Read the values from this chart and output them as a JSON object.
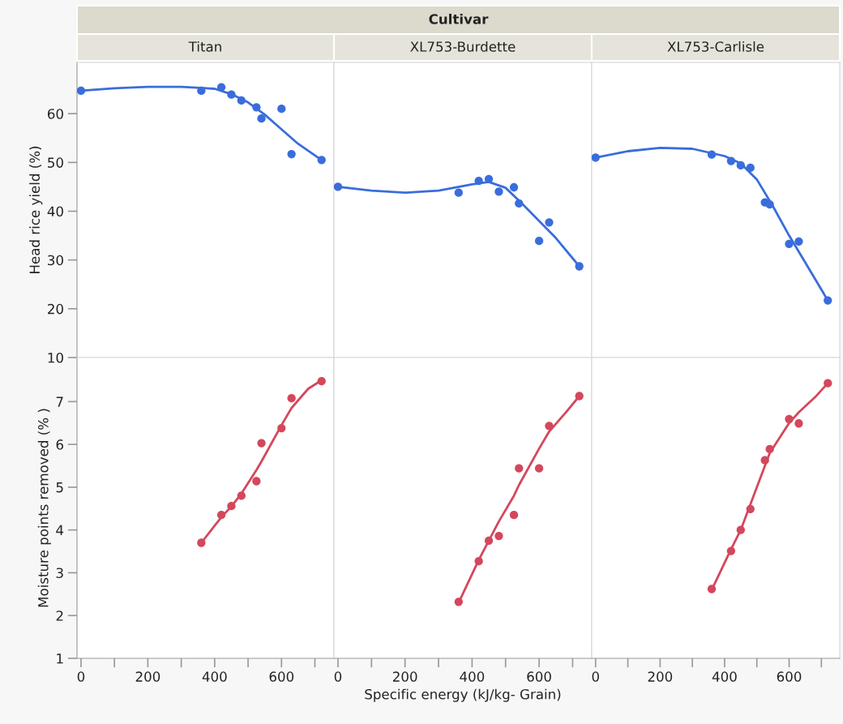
{
  "chart_data": [
    {
      "type": "scatter",
      "title": "Titan",
      "annotations": [
        "Cultivar"
      ],
      "ylabel": "Head rice yield (%)",
      "xlim": [
        -12,
        757
      ],
      "ylim": [
        10,
        70.5
      ],
      "yticks": [
        10,
        20,
        30,
        40,
        50,
        60
      ],
      "tick_labels": "y",
      "marker": "circle",
      "grid": false,
      "series": [
        {
          "color": "#3a6ddc",
          "x": [
            0,
            360,
            420,
            450,
            480,
            525,
            540,
            600,
            630,
            720
          ],
          "values": [
            64.7,
            64.7,
            65.4,
            63.9,
            62.7,
            61.3,
            59.0,
            61.0,
            51.7,
            50.5
          ]
        },
        {
          "type": "line",
          "marker": "none",
          "color": "#3a6ddc",
          "x": [
            0,
            100,
            200,
            300,
            400,
            450,
            500,
            550,
            600,
            650,
            720
          ],
          "values": [
            64.7,
            65.2,
            65.5,
            65.5,
            65.1,
            64.0,
            62.3,
            59.8,
            56.8,
            53.8,
            50.5
          ]
        }
      ]
    },
    {
      "type": "scatter",
      "title": "XL753-Burdette",
      "xlim": [
        -12,
        757
      ],
      "ylim": [
        10,
        70.5
      ],
      "tick_labels": false,
      "marker": "circle",
      "grid": false,
      "series": [
        {
          "color": "#3a6ddc",
          "x": [
            0,
            360,
            420,
            450,
            480,
            525,
            540,
            600,
            630,
            720
          ],
          "values": [
            45.0,
            43.8,
            46.2,
            46.6,
            44.0,
            44.9,
            41.6,
            33.9,
            37.7,
            28.7
          ]
        },
        {
          "type": "line",
          "marker": "none",
          "color": "#3a6ddc",
          "x": [
            0,
            100,
            200,
            300,
            400,
            450,
            500,
            550,
            600,
            650,
            720
          ],
          "values": [
            45.0,
            44.2,
            43.8,
            44.2,
            45.5,
            46.0,
            44.8,
            41.5,
            38.0,
            34.5,
            28.7
          ]
        }
      ]
    },
    {
      "type": "scatter",
      "title": "XL753-Carlisle",
      "xlim": [
        -12,
        757
      ],
      "ylim": [
        10,
        70.5
      ],
      "tick_labels": false,
      "marker": "circle",
      "grid": false,
      "series": [
        {
          "color": "#3a6ddc",
          "x": [
            0,
            360,
            420,
            450,
            480,
            525,
            540,
            600,
            630,
            720
          ],
          "values": [
            51.0,
            51.6,
            50.3,
            49.4,
            48.9,
            41.8,
            41.4,
            33.3,
            33.8,
            21.7
          ]
        },
        {
          "type": "line",
          "marker": "none",
          "color": "#3a6ddc",
          "x": [
            0,
            100,
            200,
            300,
            400,
            450,
            500,
            550,
            600,
            650,
            720
          ],
          "values": [
            51.0,
            52.3,
            53.0,
            52.8,
            51.3,
            49.8,
            46.5,
            41.0,
            35.0,
            29.5,
            21.7
          ]
        }
      ]
    },
    {
      "type": "scatter",
      "ylabel": "Moisture points removed (% )",
      "xlim": [
        -12,
        757
      ],
      "ylim": [
        1,
        8.03
      ],
      "xticks": [
        0,
        {
          "value": 100,
          "label": null
        },
        200,
        {
          "value": 300,
          "label": null
        },
        400,
        {
          "value": 500,
          "label": null
        },
        600,
        {
          "value": 700,
          "label": null
        }
      ],
      "yticks": [
        1,
        2,
        3,
        4,
        5,
        6,
        7
      ],
      "marker": "circle",
      "grid": false,
      "series": [
        {
          "color": "#d4475c",
          "x": [
            360,
            420,
            450,
            480,
            525,
            540,
            600,
            630,
            720
          ],
          "values": [
            3.7,
            4.35,
            4.56,
            4.8,
            5.14,
            6.03,
            6.38,
            7.08,
            7.48
          ]
        },
        {
          "type": "line",
          "marker": "none",
          "color": "#d4475c",
          "x": [
            360,
            420,
            450,
            480,
            525,
            540,
            600,
            630,
            680,
            720
          ],
          "values": [
            3.7,
            4.3,
            4.55,
            4.85,
            5.4,
            5.6,
            6.45,
            6.85,
            7.3,
            7.5
          ]
        }
      ]
    },
    {
      "type": "scatter",
      "xlabel": "Specific energy (kJ/kg- Grain)",
      "xlim": [
        -12,
        757
      ],
      "ylim": [
        1,
        8.03
      ],
      "xticks": [
        0,
        {
          "value": 100,
          "label": null
        },
        200,
        {
          "value": 300,
          "label": null
        },
        400,
        {
          "value": 500,
          "label": null
        },
        600,
        {
          "value": 700,
          "label": null
        }
      ],
      "tick_labels": "x",
      "marker": "circle",
      "grid": false,
      "series": [
        {
          "color": "#d4475c",
          "x": [
            360,
            420,
            450,
            480,
            525,
            540,
            600,
            630,
            720
          ],
          "values": [
            2.32,
            3.27,
            3.75,
            3.86,
            4.35,
            5.44,
            5.44,
            6.43,
            7.13
          ]
        },
        {
          "type": "line",
          "marker": "none",
          "color": "#d4475c",
          "x": [
            360,
            420,
            450,
            480,
            525,
            540,
            600,
            630,
            680,
            720
          ],
          "values": [
            2.3,
            3.3,
            3.75,
            4.2,
            4.8,
            5.05,
            5.9,
            6.3,
            6.75,
            7.13
          ]
        }
      ]
    },
    {
      "type": "scatter",
      "xlim": [
        -12,
        757
      ],
      "ylim": [
        1,
        8.03
      ],
      "xticks": [
        0,
        {
          "value": 100,
          "label": null
        },
        200,
        {
          "value": 300,
          "label": null
        },
        400,
        {
          "value": 500,
          "label": null
        },
        600,
        {
          "value": 700,
          "label": null
        }
      ],
      "tick_labels": "x",
      "marker": "circle",
      "grid": false,
      "series": [
        {
          "color": "#d4475c",
          "x": [
            360,
            420,
            450,
            480,
            525,
            540,
            600,
            630,
            720
          ],
          "values": [
            2.62,
            3.51,
            4.0,
            4.49,
            5.63,
            5.89,
            6.59,
            6.49,
            7.43
          ]
        },
        {
          "type": "line",
          "marker": "none",
          "color": "#d4475c",
          "x": [
            360,
            420,
            450,
            480,
            525,
            540,
            600,
            630,
            680,
            720
          ],
          "values": [
            2.6,
            3.55,
            4.0,
            4.6,
            5.5,
            5.8,
            6.5,
            6.75,
            7.1,
            7.43
          ]
        }
      ]
    }
  ]
}
